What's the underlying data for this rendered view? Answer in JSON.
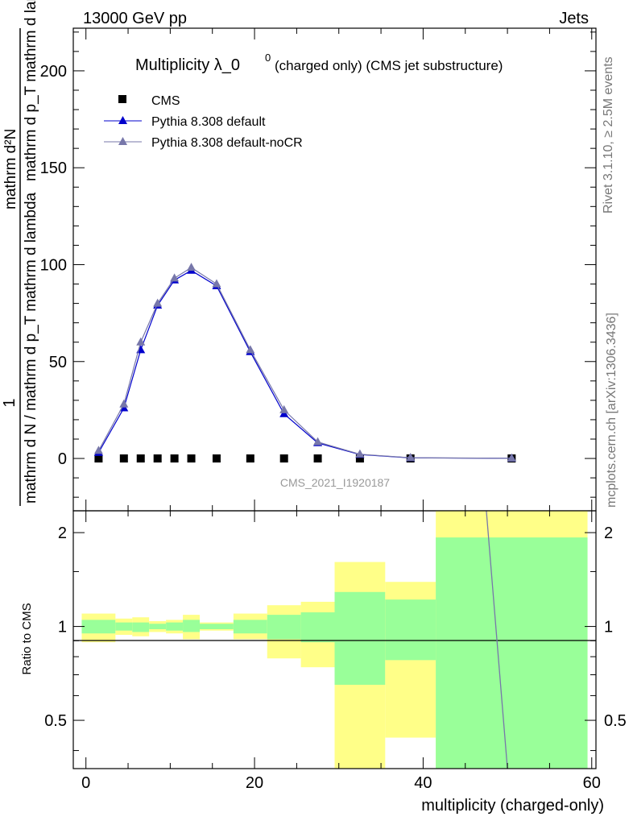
{
  "header": {
    "left": "13000 GeV pp",
    "right": "Jets"
  },
  "side_labels": {
    "rivet": "Rivet 3.1.10, ≥ 2.5M events",
    "mcplots": "mcplots.cern.ch [arXiv:1306.3436]"
  },
  "chart_data": [
    {
      "type": "line",
      "title_main": "Multiplicity λ_0",
      "title_sup": "0",
      "title_paren": "(charged only) (CMS jet substructure)",
      "ylabel_numerator": "1",
      "ylabel_denominator": "mathrm d N / mathrm d p_T mathrm d lambda",
      "ylabel_full_top": "mathrm d²N",
      "ylabel_full_bottom": "mathrm d p_T mathrm d lambda",
      "xlim": [
        -1.5,
        60.5
      ],
      "ylim": [
        -27,
        222
      ],
      "yticks": [
        0,
        50,
        100,
        150,
        200
      ],
      "watermark": "CMS_2021_I1920187",
      "legend": [
        "CMS",
        "Pythia 8.308 default",
        "Pythia 8.308 default-noCR"
      ],
      "series": [
        {
          "name": "CMS",
          "color": "#000000",
          "x": [
            1.5,
            4.5,
            6.5,
            8.5,
            10.5,
            12.5,
            15.5,
            19.5,
            23.5,
            27.5,
            32.5,
            38.5,
            50.5
          ],
          "y": [
            0,
            0,
            0,
            0,
            0,
            0,
            0,
            0,
            0,
            0,
            0,
            0,
            0
          ]
        },
        {
          "name": "Pythia 8.308 default",
          "color": "#0000cc",
          "x": [
            1.5,
            4.5,
            6.5,
            8.5,
            10.5,
            12.5,
            15.5,
            19.5,
            23.5,
            27.5,
            32.5,
            38.5,
            50.5
          ],
          "y": [
            3,
            26,
            56,
            79,
            92,
            97,
            89,
            55,
            23,
            8,
            2,
            0.3,
            0.05
          ]
        },
        {
          "name": "Pythia 8.308 default-noCR",
          "color": "#7777aa",
          "x": [
            1.5,
            4.5,
            6.5,
            8.5,
            10.5,
            12.5,
            15.5,
            19.5,
            23.5,
            27.5,
            32.5,
            38.5,
            50.5
          ],
          "y": [
            4,
            28,
            60,
            80,
            93,
            98.5,
            90,
            56,
            25,
            8.5,
            2.2,
            0.4,
            0.06
          ]
        }
      ]
    },
    {
      "type": "area",
      "ylabel": "Ratio to CMS",
      "xlabel": "multiplicity (charged-only)",
      "xlim": [
        -1.5,
        60.5
      ],
      "ylim": [
        0.35,
        2.35
      ],
      "yticks": [
        0.5,
        1,
        2
      ],
      "ytick_labels": [
        "0.5",
        "1",
        "2"
      ],
      "xticks": [
        0,
        20,
        40,
        60
      ],
      "bands": [
        {
          "x0": -0.5,
          "x1": 3.5,
          "g_lo": 0.95,
          "g_hi": 1.05,
          "y_lo": 0.89,
          "y_hi": 1.1
        },
        {
          "x0": 3.5,
          "x1": 5.5,
          "g_lo": 0.97,
          "g_hi": 1.03,
          "y_lo": 0.94,
          "y_hi": 1.06
        },
        {
          "x0": 5.5,
          "x1": 7.5,
          "g_lo": 0.96,
          "g_hi": 1.03,
          "y_lo": 0.93,
          "y_hi": 1.07
        },
        {
          "x0": 7.5,
          "x1": 9.5,
          "g_lo": 0.98,
          "g_hi": 1.02,
          "y_lo": 0.96,
          "y_hi": 1.04
        },
        {
          "x0": 9.5,
          "x1": 11.5,
          "g_lo": 0.97,
          "g_hi": 1.03,
          "y_lo": 0.95,
          "y_hi": 1.05
        },
        {
          "x0": 11.5,
          "x1": 13.5,
          "g_lo": 0.96,
          "g_hi": 1.05,
          "y_lo": 0.91,
          "y_hi": 1.09
        },
        {
          "x0": 13.5,
          "x1": 17.5,
          "g_lo": 0.98,
          "g_hi": 1.02,
          "y_lo": 0.97,
          "y_hi": 1.03
        },
        {
          "x0": 17.5,
          "x1": 21.5,
          "g_lo": 0.95,
          "g_hi": 1.05,
          "y_lo": 0.91,
          "y_hi": 1.1
        },
        {
          "x0": 21.5,
          "x1": 25.5,
          "g_lo": 0.91,
          "g_hi": 1.09,
          "y_lo": 0.79,
          "y_hi": 1.17
        },
        {
          "x0": 25.5,
          "x1": 29.5,
          "g_lo": 0.89,
          "g_hi": 1.11,
          "y_lo": 0.74,
          "y_hi": 1.2
        },
        {
          "x0": 29.5,
          "x1": 35.5,
          "g_lo": 0.65,
          "g_hi": 1.29,
          "y_lo": 0.3,
          "y_hi": 1.61
        },
        {
          "x0": 35.5,
          "x1": 41.5,
          "g_lo": 0.78,
          "g_hi": 1.22,
          "y_lo": 0.44,
          "y_hi": 1.39
        },
        {
          "x0": 41.5,
          "x1": 59.5,
          "g_lo": 0.1,
          "g_hi": 1.93,
          "y_lo": 0.0,
          "y_hi": 2.5
        }
      ],
      "ratio_line": {
        "x": [
          47.5,
          50.0
        ],
        "y": [
          2.5,
          0.35
        ],
        "color": "#7777aa"
      }
    }
  ]
}
